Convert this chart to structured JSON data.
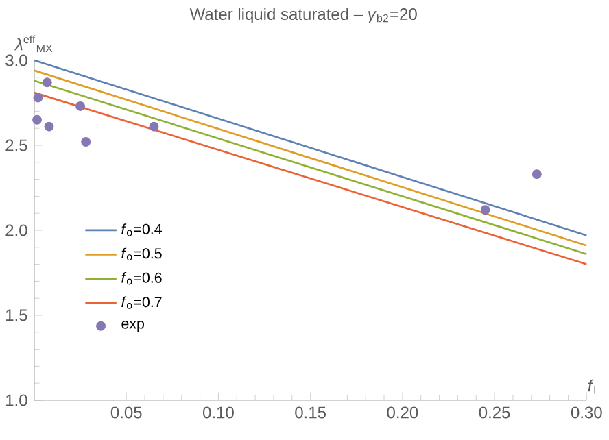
{
  "chart_data": {
    "type": "line",
    "title": "Water liquid saturated – *γ*$_{b2}$=20",
    "xlabel": "*f*$_{l}$",
    "ylabel": "*λ*$^{eff}$$_{MX}$",
    "xlim": [
      0,
      0.3
    ],
    "ylim": [
      1.0,
      3.0
    ],
    "xticks": [
      {
        "value": 0.05,
        "label": "0.05"
      },
      {
        "value": 0.1,
        "label": "0.10"
      },
      {
        "value": 0.15,
        "label": "0.15"
      },
      {
        "value": 0.2,
        "label": "0.20"
      },
      {
        "value": 0.25,
        "label": "0.25"
      },
      {
        "value": 0.3,
        "label": "0.30"
      }
    ],
    "yticks": [
      {
        "value": 1.0,
        "label": "1.0"
      },
      {
        "value": 1.5,
        "label": "1.5"
      },
      {
        "value": 2.0,
        "label": "2.0"
      },
      {
        "value": 2.5,
        "label": "2.5"
      },
      {
        "value": 3.0,
        "label": "3.0"
      }
    ],
    "grid": false,
    "legend": "left",
    "marker": "none",
    "line_style": "solid",
    "series": [
      {
        "name": "*f*$_{o}$=0.4",
        "color": "#5e81b5",
        "x": [
          0,
          0.3
        ],
        "values": [
          3.0,
          1.97
        ]
      },
      {
        "name": "*f*$_{o}$=0.5",
        "color": "#e19c24",
        "x": [
          0,
          0.3
        ],
        "values": [
          2.94,
          1.91
        ]
      },
      {
        "name": "*f*$_{o}$=0.6",
        "color": "#8fb032",
        "x": [
          0,
          0.3
        ],
        "values": [
          2.88,
          1.86
        ]
      },
      {
        "name": "*f*$_{o}$=0.7",
        "color": "#eb6235",
        "x": [
          0,
          0.3
        ],
        "values": [
          2.81,
          1.8
        ]
      },
      {
        "name": "exp",
        "type": "scatter",
        "marker": "circle",
        "color": "#8778b3",
        "x": [
          0.002,
          0.007,
          0.0015,
          0.008,
          0.025,
          0.028,
          0.065,
          0.245,
          0.273
        ],
        "values": [
          2.78,
          2.87,
          2.65,
          2.61,
          2.73,
          2.52,
          2.61,
          2.12,
          2.33
        ]
      }
    ]
  }
}
